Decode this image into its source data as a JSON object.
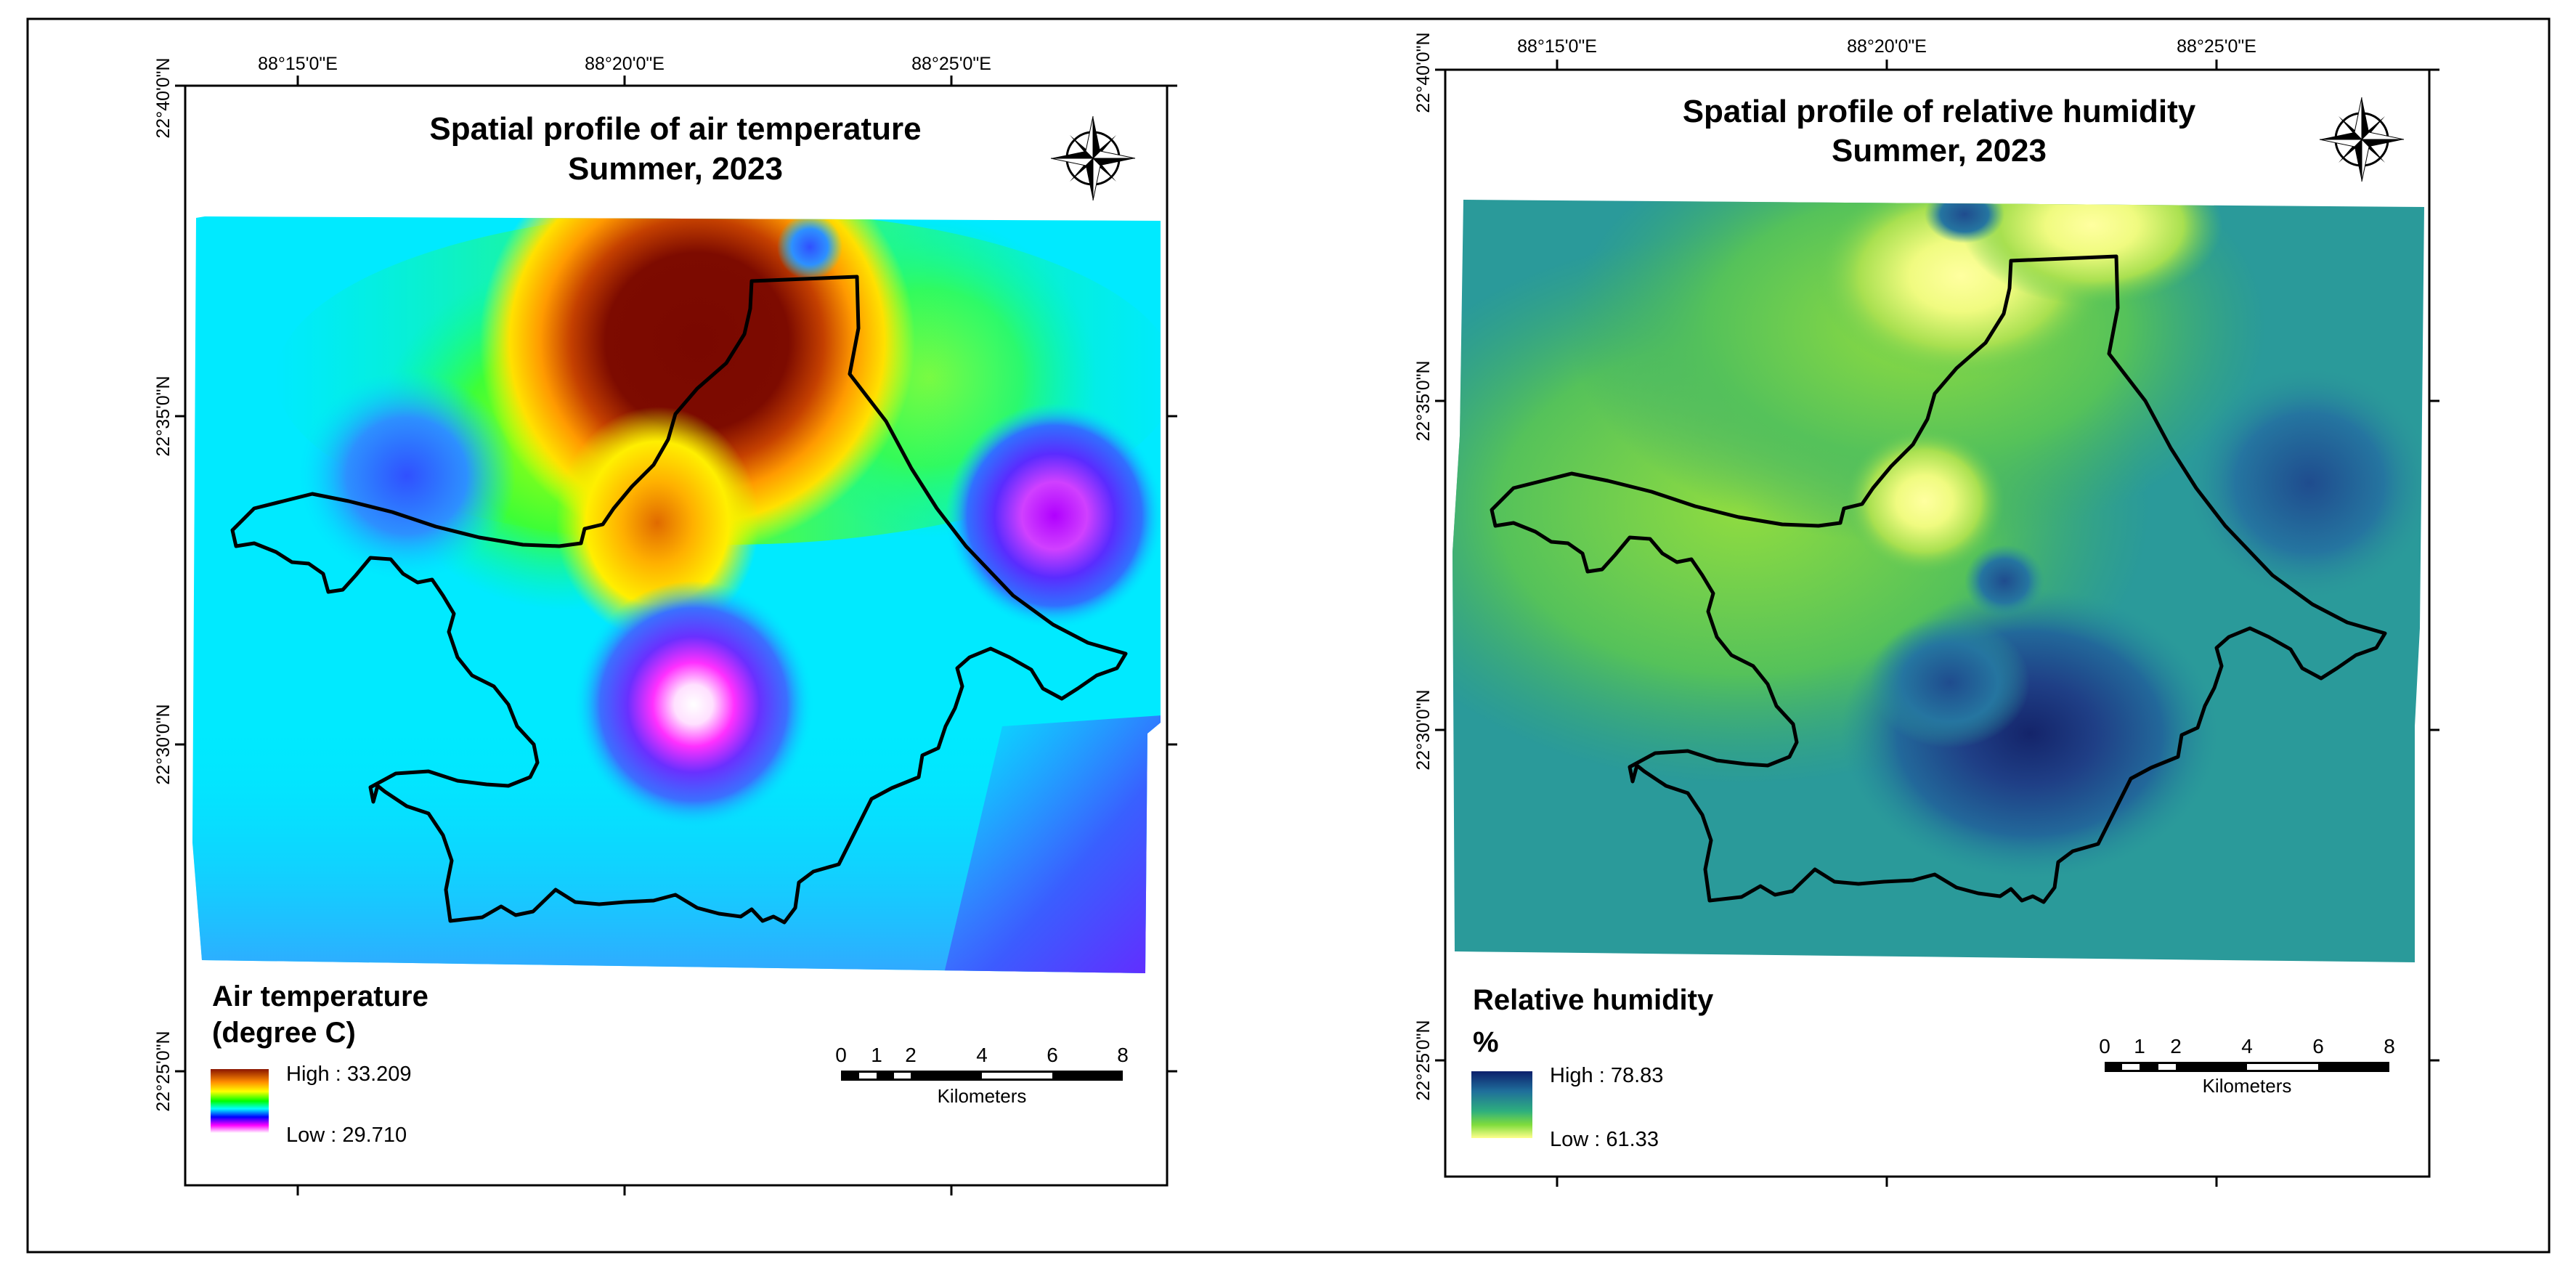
{
  "maps": [
    {
      "id": "air-temperature",
      "title_line1": "Spatial profile of air temperature",
      "title_line2": "Summer, 2023",
      "legend_title_line1": "Air temperature",
      "legend_title_line2": "(degree C)",
      "legend_high": "High : 33.209",
      "legend_low": "Low : 29.710",
      "legend_ramp": [
        "#8b1500",
        "#ff8c00",
        "#ffff00",
        "#00ff00",
        "#00ffff",
        "#0000ff",
        "#ff00ff",
        "#ffffff"
      ],
      "lon_labels": [
        "88°15'0\"E",
        "88°20'0\"E",
        "88°25'0\"E"
      ],
      "lat_labels": [
        "22°40'0\"N",
        "22°35'0\"N",
        "22°30'0\"N",
        "22°25'0\"N"
      ],
      "scale_ticks": [
        "0",
        "1",
        "2",
        "4",
        "6",
        "8"
      ],
      "scale_unit": "Kilometers"
    },
    {
      "id": "relative-humidity",
      "title_line1": "Spatial profile of relative humidity",
      "title_line2": "Summer, 2023",
      "legend_title_line1": "Relative humidity",
      "legend_title_line2": "%",
      "legend_high": "High : 78.83",
      "legend_low": "Low : 61.33",
      "legend_ramp": [
        "#0c1f6b",
        "#1f6f9b",
        "#2eaf7d",
        "#7fdc3c",
        "#ffff8c"
      ],
      "lon_labels": [
        "88°15'0\"E",
        "88°20'0\"E",
        "88°25'0\"E"
      ],
      "lat_labels": [
        "22°40'0\"N",
        "22°35'0\"N",
        "22°30'0\"N",
        "22°25'0\"N"
      ],
      "scale_ticks": [
        "0",
        "1",
        "2",
        "4",
        "6",
        "8"
      ],
      "scale_unit": "Kilometers"
    }
  ],
  "colors": {
    "temp_background": "#00e8ff",
    "temp_hot": "#7a0a00",
    "temp_cold_low": "#6a2cff",
    "rh_background": "#2f9f9a",
    "rh_dry": "#ffff9a",
    "rh_humid": "#142a6e"
  }
}
